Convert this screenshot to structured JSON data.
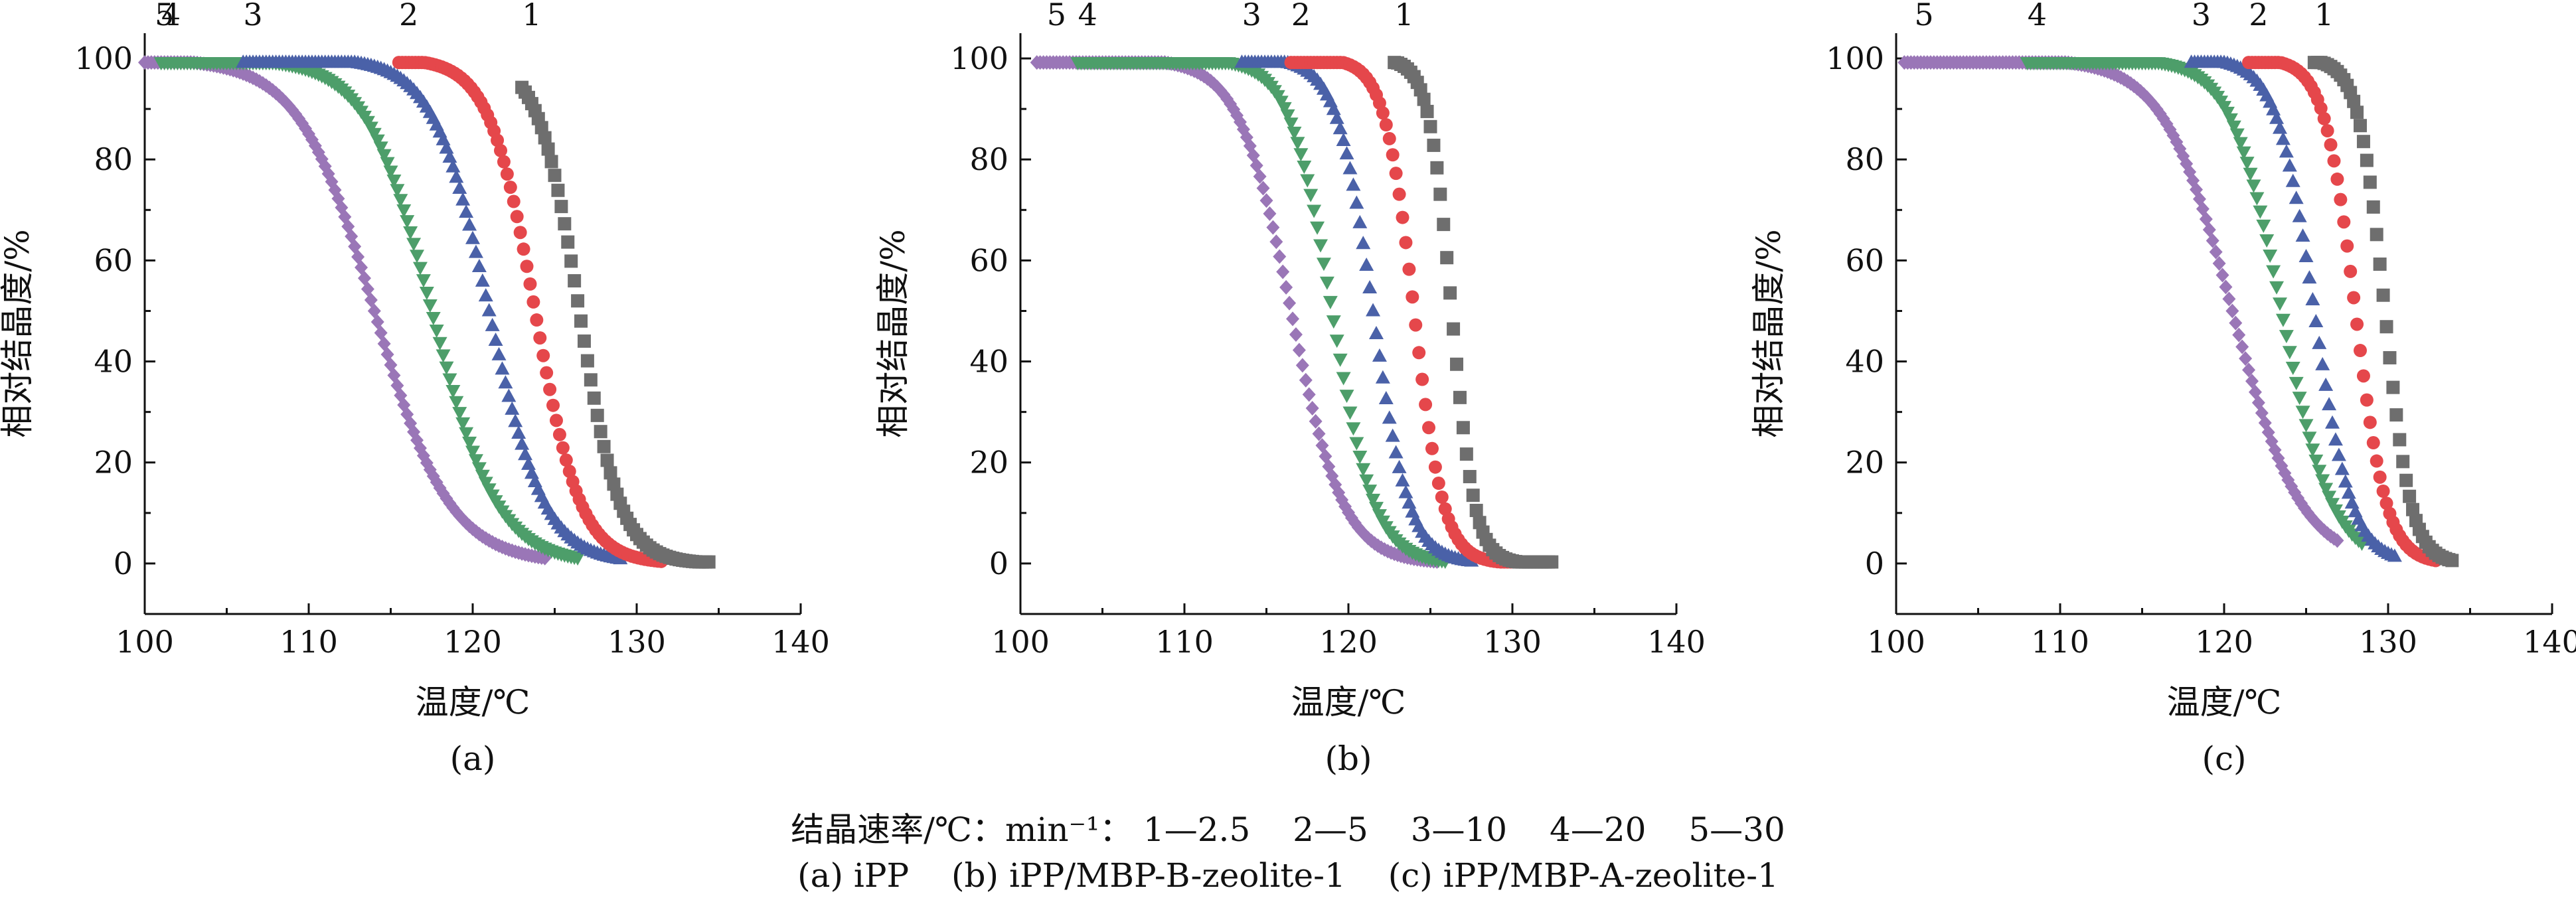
{
  "chart_data": [
    {
      "type": "scatter",
      "panel_label": "(a)",
      "xlabel": "温度/℃",
      "ylabel": "相对结晶度/%",
      "xlim": [
        100,
        140
      ],
      "ylim": [
        -10,
        105
      ],
      "xticks": [
        "100",
        "110",
        "120",
        "130",
        "140"
      ],
      "yticks": [
        "0",
        "20",
        "40",
        "60",
        "80",
        "100"
      ],
      "grid": false,
      "series": [
        {
          "name": "1",
          "color": "#6e6e6e",
          "marker": "square",
          "x_end": 134.5,
          "x_mid": 126.5,
          "x_start": 123.0,
          "width": 1.25
        },
        {
          "name": "2",
          "color": "#e5474b",
          "marker": "circle",
          "x_end": 131.5,
          "x_mid": 123.8,
          "x_start": 115.5,
          "width": 1.4
        },
        {
          "name": "3",
          "color": "#4a61a8",
          "marker": "triangle-up",
          "x_end": 129.0,
          "x_mid": 121.0,
          "x_start": 106.0,
          "width": 1.7
        },
        {
          "name": "4",
          "color": "#4d9e6a",
          "marker": "triangle-down",
          "x_end": 126.5,
          "x_mid": 117.5,
          "x_start": 101.0,
          "width": 2.0
        },
        {
          "name": "5",
          "color": "#9a76b7",
          "marker": "diamond",
          "x_end": 124.5,
          "x_mid": 114.0,
          "x_start": 100.0,
          "width": 2.3
        }
      ]
    },
    {
      "type": "scatter",
      "panel_label": "(b)",
      "xlabel": "温度/℃",
      "ylabel": "相对结晶度/%",
      "xlim": [
        100,
        140
      ],
      "ylim": [
        -10,
        105
      ],
      "xticks": [
        "100",
        "110",
        "120",
        "130",
        "140"
      ],
      "yticks": [
        "0",
        "20",
        "40",
        "60",
        "80",
        "100"
      ],
      "grid": false,
      "series": [
        {
          "name": "1",
          "color": "#6e6e6e",
          "marker": "square",
          "x_end": 132.5,
          "x_mid": 126.3,
          "x_start": 122.8,
          "width": 0.7
        },
        {
          "name": "2",
          "color": "#e5474b",
          "marker": "circle",
          "x_end": 130.0,
          "x_mid": 124.0,
          "x_start": 116.5,
          "width": 0.9
        },
        {
          "name": "3",
          "color": "#4a61a8",
          "marker": "triangle-up",
          "x_end": 127.5,
          "x_mid": 121.5,
          "x_start": 113.5,
          "width": 1.1
        },
        {
          "name": "4",
          "color": "#4d9e6a",
          "marker": "triangle-down",
          "x_end": 126.0,
          "x_mid": 119.0,
          "x_start": 103.5,
          "width": 1.3
        },
        {
          "name": "5",
          "color": "#9a76b7",
          "marker": "diamond",
          "x_end": 125.5,
          "x_mid": 116.5,
          "x_start": 101.0,
          "width": 1.6
        }
      ]
    },
    {
      "type": "scatter",
      "panel_label": "(c)",
      "xlabel": "温度/℃",
      "ylabel": "相对结晶度/%",
      "xlim": [
        100,
        140
      ],
      "ylim": [
        -10,
        105
      ],
      "xticks": [
        "100",
        "110",
        "120",
        "130",
        "140"
      ],
      "yticks": [
        "0",
        "20",
        "40",
        "60",
        "80",
        "100"
      ],
      "grid": false,
      "series": [
        {
          "name": "1",
          "color": "#6e6e6e",
          "marker": "square",
          "x_end": 134.0,
          "x_mid": 129.8,
          "x_start": 125.5,
          "width": 0.8
        },
        {
          "name": "2",
          "color": "#e5474b",
          "marker": "circle",
          "x_end": 133.0,
          "x_mid": 128.0,
          "x_start": 121.5,
          "width": 0.95
        },
        {
          "name": "3",
          "color": "#4a61a8",
          "marker": "triangle-up",
          "x_end": 130.5,
          "x_mid": 125.5,
          "x_start": 118.0,
          "width": 1.15
        },
        {
          "name": "4",
          "color": "#4d9e6a",
          "marker": "triangle-down",
          "x_end": 128.5,
          "x_mid": 123.5,
          "x_start": 108.0,
          "width": 1.55
        },
        {
          "name": "5",
          "color": "#9a76b7",
          "marker": "diamond",
          "x_end": 127.0,
          "x_mid": 120.5,
          "x_start": 100.5,
          "width": 2.1
        }
      ]
    }
  ],
  "captions": {
    "rates_label": "结晶速率/℃：min⁻¹：",
    "rates": [
      "1—2.5",
      "2—5",
      "3—10",
      "4—20",
      "5—30"
    ],
    "samples": [
      "(a) iPP",
      "(b) iPP/MBP-B-zeolite-1",
      "(c) iPP/MBP-A-zeolite-1"
    ]
  }
}
